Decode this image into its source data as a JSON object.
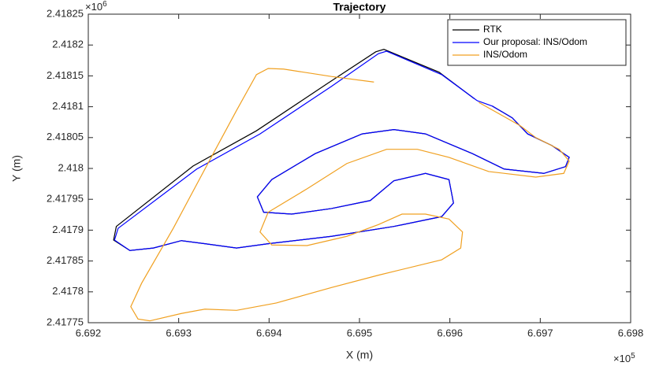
{
  "chart_data": {
    "type": "line",
    "title": "Trajectory",
    "x_label": "X (m)",
    "y_label": "Y (m)",
    "x_multiplier": {
      "base": "×10",
      "exponent": "5"
    },
    "y_multiplier": {
      "base": "×10",
      "exponent": "6"
    },
    "xlim": [
      6.692,
      6.698
    ],
    "xticks": [
      6.692,
      6.693,
      6.694,
      6.695,
      6.696,
      6.697,
      6.698
    ],
    "ylim": [
      2.41775,
      2.41825
    ],
    "yticks": [
      2.41775,
      2.4178,
      2.41785,
      2.4179,
      2.41795,
      2.418,
      2.41805,
      2.4181,
      2.41815,
      2.4182,
      2.41825
    ],
    "grid": false,
    "legend": "northeast",
    "series": [
      {
        "name": "RTK",
        "color": "#000000",
        "x": [
          6.69627,
          6.69588,
          6.69527,
          6.69518,
          6.69465,
          6.69386,
          6.69316,
          6.69231,
          6.69228,
          6.69246,
          6.69272,
          6.69303,
          6.69329,
          6.69364,
          6.69399,
          6.69469,
          6.69538,
          6.69591,
          6.69604,
          6.69599,
          6.69573,
          6.69538,
          6.69512,
          6.69469,
          6.69425,
          6.69394,
          6.69387,
          6.69403,
          6.69451,
          6.69503,
          6.69538,
          6.69573,
          6.69625,
          6.6966,
          6.69704,
          6.69728,
          6.69732,
          6.69713,
          6.69686,
          6.69669,
          6.69647
        ],
        "y": [
          2.418113,
          2.418156,
          2.418193,
          2.418189,
          2.418138,
          2.418061,
          2.418004,
          2.417906,
          2.417884,
          2.417867,
          2.417871,
          2.417883,
          2.417878,
          2.417871,
          2.417878,
          2.41789,
          2.417906,
          2.417922,
          2.417944,
          2.417982,
          2.417992,
          2.41798,
          2.417948,
          2.417935,
          2.417926,
          2.417929,
          2.417954,
          2.417982,
          2.418024,
          2.418056,
          2.418063,
          2.418056,
          2.418024,
          2.417999,
          2.417992,
          2.418003,
          2.418018,
          2.418037,
          2.418056,
          2.418082,
          2.418101
        ]
      },
      {
        "name": "Our proposal: INS/Odom",
        "color": "#0000ff",
        "x": [
          6.6963,
          6.69591,
          6.6953,
          6.69521,
          6.69469,
          6.6939,
          6.6932,
          6.69233,
          6.69229,
          6.69246,
          6.69272,
          6.69303,
          6.69329,
          6.69364,
          6.69399,
          6.69469,
          6.69538,
          6.69591,
          6.69604,
          6.69599,
          6.69573,
          6.69538,
          6.69512,
          6.69469,
          6.69425,
          6.69394,
          6.69387,
          6.69403,
          6.69451,
          6.69503,
          6.69538,
          6.69573,
          6.69625,
          6.6966,
          6.69704,
          6.69728,
          6.69732,
          6.69713,
          6.69686,
          6.69669,
          6.69647,
          6.6963
        ],
        "y": [
          2.41811,
          2.418152,
          2.41819,
          2.418186,
          2.418133,
          2.418056,
          2.417999,
          2.417903,
          2.417884,
          2.417867,
          2.417871,
          2.417883,
          2.417878,
          2.417871,
          2.417878,
          2.41789,
          2.417906,
          2.417922,
          2.417944,
          2.417982,
          2.417992,
          2.41798,
          2.417948,
          2.417935,
          2.417926,
          2.417929,
          2.417954,
          2.417982,
          2.418024,
          2.418056,
          2.418063,
          2.418056,
          2.418024,
          2.417999,
          2.417992,
          2.418003,
          2.418018,
          2.418037,
          2.418056,
          2.418082,
          2.418101,
          2.41811
        ]
      },
      {
        "name": "INS/Odom",
        "color": "#f0a020",
        "x": [
          6.69516,
          6.69469,
          6.69416,
          6.69399,
          6.69386,
          6.69364,
          6.69329,
          6.69294,
          6.69259,
          6.69247,
          6.69255,
          6.69268,
          6.69303,
          6.69329,
          6.69364,
          6.69408,
          6.69469,
          6.69521,
          6.69591,
          6.69612,
          6.69614,
          6.69599,
          6.69573,
          6.69547,
          6.69521,
          6.69486,
          6.69442,
          6.69403,
          6.6939,
          6.69399,
          6.69442,
          6.69486,
          6.6953,
          6.69564,
          6.69599,
          6.69643,
          6.69695,
          6.69726,
          6.69732,
          6.69721,
          6.69695,
          6.69678,
          6.6966,
          6.69632
        ],
        "y": [
          2.41814,
          2.418149,
          2.418161,
          2.418162,
          2.418152,
          2.418094,
          2.417999,
          2.417903,
          2.417814,
          2.417776,
          2.417756,
          2.417753,
          2.417765,
          2.417772,
          2.41777,
          2.417782,
          2.417807,
          2.417827,
          2.417852,
          2.417871,
          2.417897,
          2.417918,
          2.417926,
          2.417926,
          2.417909,
          2.41789,
          2.417875,
          2.417876,
          2.417897,
          2.417929,
          2.417967,
          2.418008,
          2.418031,
          2.418031,
          2.418018,
          2.417995,
          2.417986,
          2.417992,
          2.418012,
          2.418031,
          2.41805,
          2.418069,
          2.418084,
          2.418107
        ]
      }
    ]
  }
}
